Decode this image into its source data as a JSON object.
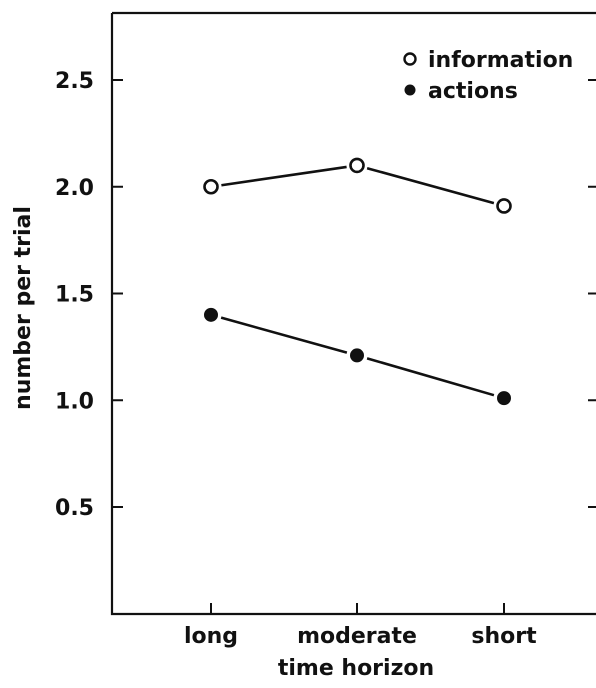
{
  "chart_data": {
    "type": "line",
    "categories": [
      "long",
      "moderate",
      "short"
    ],
    "series": [
      {
        "name": "information",
        "values": [
          2.0,
          2.1,
          1.91
        ],
        "marker": "open-circle"
      },
      {
        "name": "actions",
        "values": [
          1.4,
          1.21,
          1.01
        ],
        "marker": "filled-circle"
      }
    ],
    "xlabel": "time horizon",
    "ylabel": "number per trial",
    "ylim": [
      0,
      2.75
    ],
    "yticks": [
      0.5,
      1.0,
      1.5,
      2.0,
      2.5
    ],
    "ytick_labels": [
      "0.5",
      "1.0",
      "1.5",
      "2.0",
      "2.5"
    ],
    "grid": false,
    "legend_position": "top-right",
    "colors": {
      "ink": "#111111",
      "background": "#ffffff"
    }
  }
}
